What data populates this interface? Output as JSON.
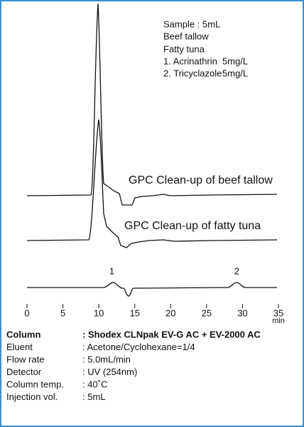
{
  "chart_data": {
    "type": "chromatogram",
    "sample_info": [
      "Sample : 5mL",
      "Beef tallow",
      "Fatty tuna"
    ],
    "compounds": [
      {
        "name": "1. Acrinathrin",
        "conc": "5mg/L"
      },
      {
        "name": "2. Tricyclazole",
        "conc": "5mg/L"
      }
    ],
    "trace_labels": [
      "GPC Clean-up of beef tallow",
      "GPC Clean-up of fatty tuna"
    ],
    "peak_labels": [
      {
        "label": "1",
        "x": 11.8
      },
      {
        "label": "2",
        "x": 29.2
      }
    ],
    "xlim": [
      0,
      35
    ],
    "xticks": [
      0,
      5,
      10,
      15,
      20,
      25,
      30,
      35
    ],
    "x_unit": "min",
    "conditions": [
      {
        "label": "Column",
        "value": ": Shodex CLNpak EV-G AC + EV-2000 AC"
      },
      {
        "label": "Eluent",
        "value": ": Acetone/Cyclohexane=1/4"
      },
      {
        "label": "Flow rate",
        "value": ": 5.0mL/min"
      },
      {
        "label": "Detector",
        "value": ": UV (254nm)"
      },
      {
        "label": "Column temp.",
        "value": ": 40˚C"
      },
      {
        "label": "Injection vol.",
        "value": ": 5mL"
      }
    ]
  }
}
